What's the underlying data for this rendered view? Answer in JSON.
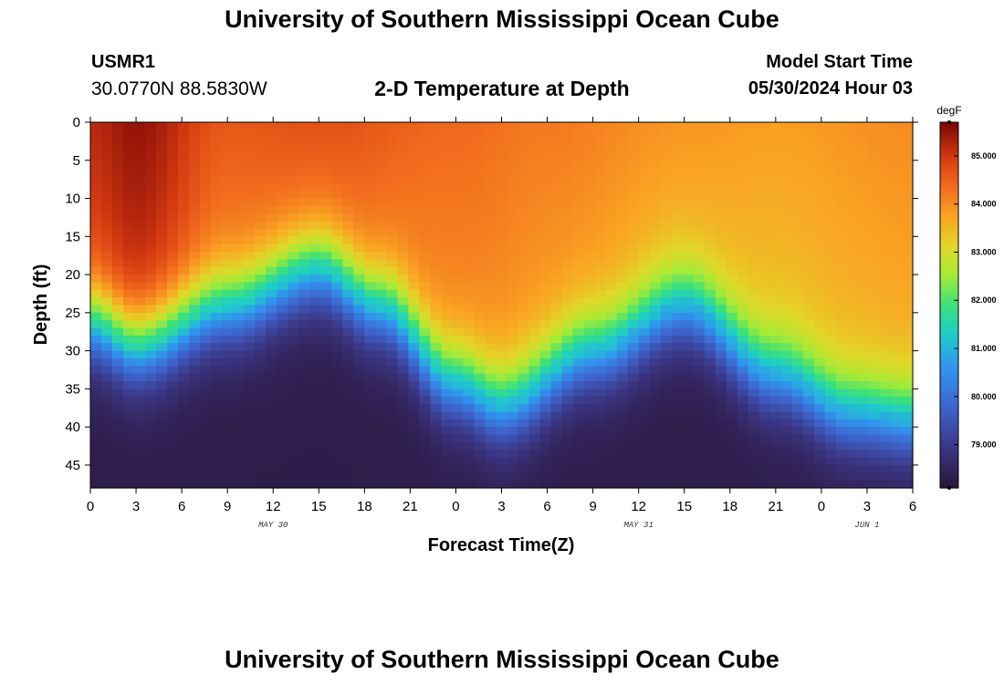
{
  "header": {
    "title": "University of Southern Mississippi Ocean Cube",
    "station_id": "USMR1",
    "station_coords": "30.0770N  88.5830W",
    "subtitle": "2-D Temperature at Depth",
    "model_label": "Model Start Time",
    "model_time": "05/30/2024 Hour 03"
  },
  "footer": {
    "title": "University of Southern Mississippi Ocean Cube"
  },
  "chart_data": {
    "type": "heatmap",
    "title": "2-D Temperature at Depth",
    "xlabel": "Forecast Time(Z)",
    "ylabel": "Depth (ft)",
    "x_hours_range": [
      0,
      54
    ],
    "y_depth_range_ft": [
      0,
      48
    ],
    "x_tick_labels": [
      "0",
      "3",
      "6",
      "9",
      "12",
      "15",
      "18",
      "21",
      "0",
      "3",
      "6",
      "9",
      "12",
      "15",
      "18",
      "21",
      "0",
      "3",
      "6"
    ],
    "y_tick_labels": [
      "0",
      "5",
      "10",
      "15",
      "20",
      "25",
      "30",
      "35",
      "40",
      "45"
    ],
    "date_labels": [
      {
        "hour": 12,
        "text": "MAY 30"
      },
      {
        "hour": 36,
        "text": "MAY 31"
      },
      {
        "hour": 51,
        "text": "JUN 1"
      }
    ],
    "colorbar": {
      "units": "degF",
      "range": [
        78.1,
        85.7
      ],
      "ticks": [
        "79.000",
        "80.000",
        "81.000",
        "82.000",
        "83.000",
        "84.000",
        "85.000"
      ]
    },
    "surface_temp_degF": [
      {
        "hour": 0,
        "value": 85.2
      },
      {
        "hour": 3,
        "value": 85.5
      },
      {
        "hour": 9,
        "value": 84.6
      },
      {
        "hour": 15,
        "value": 84.7
      },
      {
        "hour": 24,
        "value": 84.4
      },
      {
        "hour": 30,
        "value": 84.2
      },
      {
        "hour": 39,
        "value": 83.9
      },
      {
        "hour": 45,
        "value": 83.8
      },
      {
        "hour": 54,
        "value": 84.0
      }
    ],
    "thermocline_center_depth_ft": [
      {
        "hour": 0,
        "value": 26
      },
      {
        "hour": 3,
        "value": 29
      },
      {
        "hour": 9,
        "value": 24
      },
      {
        "hour": 15,
        "value": 19
      },
      {
        "hour": 19,
        "value": 24
      },
      {
        "hour": 24,
        "value": 34
      },
      {
        "hour": 27,
        "value": 37
      },
      {
        "hour": 33,
        "value": 30
      },
      {
        "hour": 39,
        "value": 24
      },
      {
        "hour": 45,
        "value": 33
      },
      {
        "hour": 50,
        "value": 38
      },
      {
        "hour": 54,
        "value": 39
      }
    ],
    "bottom_temp_degF": 78.3
  }
}
